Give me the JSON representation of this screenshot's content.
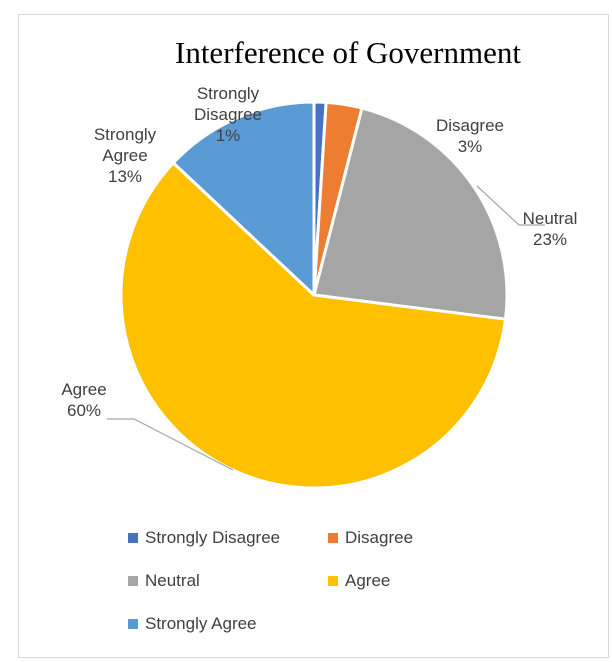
{
  "chart_data": {
    "type": "pie",
    "title": "Interference of Government",
    "categories": [
      "Strongly Disagree",
      "Disagree",
      "Neutral",
      "Agree",
      "Strongly Agree"
    ],
    "values": [
      1,
      3,
      23,
      60,
      13
    ],
    "units": "%",
    "data_labels": [
      {
        "lines": [
          "Strongly",
          "Disagree",
          "1%"
        ]
      },
      {
        "lines": [
          "Disagree",
          "3%"
        ]
      },
      {
        "lines": [
          "Neutral",
          "23%"
        ]
      },
      {
        "lines": [
          "Agree",
          "60%"
        ]
      },
      {
        "lines": [
          "Strongly",
          "Agree",
          "13%"
        ]
      }
    ],
    "colors": [
      "#4472c4",
      "#ed7d31",
      "#a5a5a5",
      "#ffc000",
      "#5b9bd5"
    ],
    "start_angle_deg": 0,
    "direction": "clockwise",
    "legend": {
      "position": "bottom",
      "entries": [
        "Strongly Disagree",
        "Disagree",
        "Neutral",
        "Agree",
        "Strongly Agree"
      ]
    }
  }
}
